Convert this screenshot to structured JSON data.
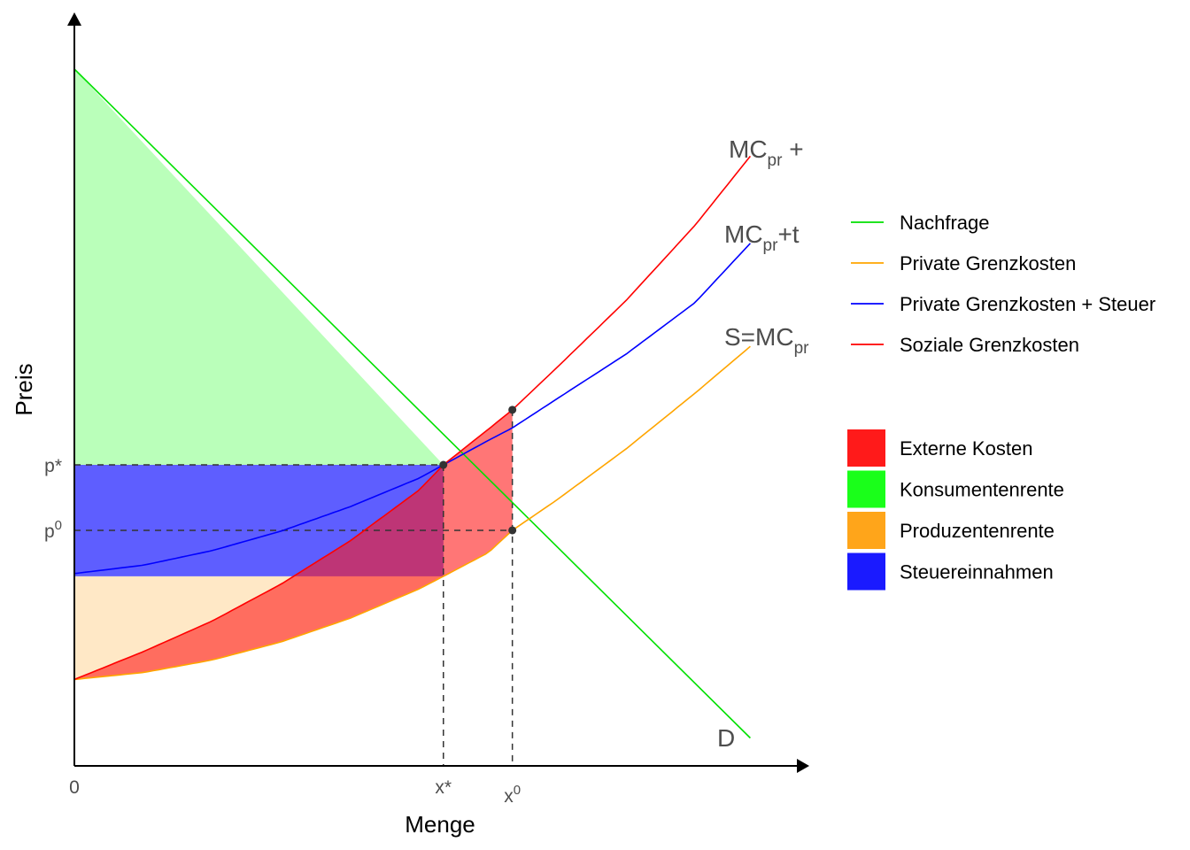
{
  "chart_data": {
    "type": "line",
    "xlabel": "Menge",
    "ylabel": "Preis",
    "xlim": [
      0,
      10
    ],
    "ylim": [
      0,
      10
    ],
    "x_ticks": [
      {
        "value": 0,
        "label": "0",
        "sup": ""
      },
      {
        "value": 5.35,
        "label": "x*",
        "sup": ""
      },
      {
        "value": 6.35,
        "label": "x",
        "sup": "0"
      }
    ],
    "y_ticks": [
      {
        "value": 4.32,
        "label": "p*",
        "sup": ""
      },
      {
        "value": 3.38,
        "label": "p",
        "sup": "0"
      }
    ],
    "series": [
      {
        "name": "Nachfrage",
        "color": "#00e000",
        "curve_label": "D",
        "x": [
          0,
          9.8
        ],
        "y": [
          10,
          0.4
        ]
      },
      {
        "name": "Private Grenzkosten",
        "color": "#ffa500",
        "curve_label": "S=MCpr",
        "x": [
          0,
          1,
          2,
          3,
          4,
          5,
          5.35,
          6,
          6.35,
          7,
          8,
          9,
          9.8
        ],
        "y": [
          1.24,
          1.34,
          1.52,
          1.78,
          2.12,
          2.54,
          2.72,
          3.06,
          3.38,
          3.82,
          4.55,
          5.35,
          6.02
        ]
      },
      {
        "name": "Private Grenzkosten + Steuer",
        "color": "#0000ff",
        "curve_label": "MCpr+t",
        "x": [
          0,
          1,
          2,
          3,
          4,
          5,
          5.35,
          6,
          6.35,
          7,
          8,
          9,
          9.8
        ],
        "y": [
          2.76,
          2.88,
          3.09,
          3.37,
          3.72,
          4.13,
          4.32,
          4.67,
          4.85,
          5.27,
          5.91,
          6.65,
          7.5
        ]
      },
      {
        "name": "Soziale Grenzkosten",
        "color": "#ff0000",
        "curve_label": "MCpr +",
        "x": [
          0,
          1,
          2,
          3,
          4,
          5,
          5.35,
          6,
          6.35,
          7,
          8,
          9,
          9.8
        ],
        "y": [
          1.24,
          1.64,
          2.08,
          2.61,
          3.23,
          3.96,
          4.32,
          4.83,
          5.11,
          5.72,
          6.68,
          7.76,
          8.75
        ]
      }
    ],
    "areas": [
      {
        "name": "Externe Kosten",
        "color": "#ff1a1a"
      },
      {
        "name": "Konsumentenrente",
        "color": "#1aff1a"
      },
      {
        "name": "Produzentenrente",
        "color": "#ffa51a"
      },
      {
        "name": "Steuereinnahmen",
        "color": "#1a1aff"
      }
    ],
    "equilibria": [
      {
        "label": "x*",
        "x": 5.35,
        "y": 4.32
      },
      {
        "label": "x0 (Markt)",
        "x": 6.35,
        "y": 3.38
      },
      {
        "label": "x0 (sozial)",
        "x": 6.35,
        "y": 5.11
      }
    ],
    "legend_position": "right"
  }
}
